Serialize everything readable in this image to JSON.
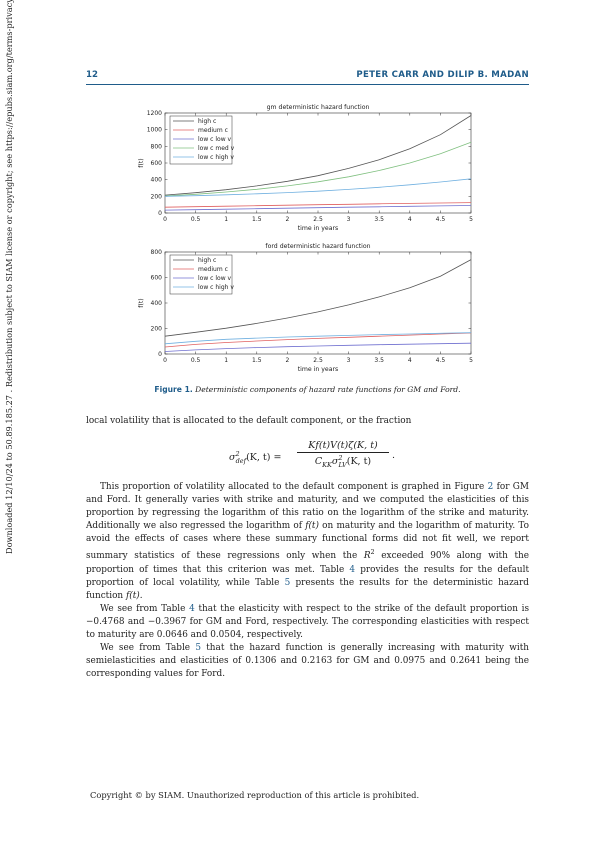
{
  "header": {
    "page_number": "12",
    "authors": "PETER CARR AND DILIP B. MADAN"
  },
  "sidebar": "Downloaded 12/10/24 to 50.89.185.27 . Redistribution subject to SIAM license or copyright; see https://epubs.siam.org/terms-privacy",
  "chart_data": [
    {
      "type": "line",
      "title": "gm deterministic hazard function",
      "xlabel": "time in years",
      "ylabel": "f(t)",
      "xlim": [
        0,
        5
      ],
      "ylim": [
        0,
        1200
      ],
      "xticks": [
        "0",
        "0.5",
        "1",
        "1.5",
        "2",
        "2.5",
        "3",
        "3.5",
        "4",
        "4.5",
        "5"
      ],
      "yticks": [
        "0",
        "200",
        "400",
        "600",
        "800",
        "1000",
        "1200"
      ],
      "legend_position": "top-left",
      "x": [
        0,
        0.5,
        1,
        1.5,
        2,
        2.5,
        3,
        3.5,
        4,
        4.5,
        5
      ],
      "series": [
        {
          "name": "high c",
          "color": "#555555",
          "values": [
            215,
            244,
            280,
            325,
            380,
            448,
            535,
            640,
            770,
            940,
            1170
          ]
        },
        {
          "name": "medium c",
          "color": "#e06060",
          "values": [
            70,
            76,
            82,
            88,
            94,
            100,
            105,
            110,
            115,
            120,
            125
          ]
        },
        {
          "name": "low c low v",
          "color": "#7070d0",
          "values": [
            35,
            40,
            46,
            52,
            58,
            64,
            70,
            75,
            80,
            85,
            90
          ]
        },
        {
          "name": "low c med v",
          "color": "#80c080",
          "values": [
            205,
            225,
            252,
            285,
            325,
            375,
            435,
            510,
            600,
            710,
            850
          ]
        },
        {
          "name": "low c high v",
          "color": "#70b0e0",
          "values": [
            200,
            208,
            218,
            230,
            245,
            262,
            283,
            308,
            338,
            372,
            410
          ]
        }
      ]
    },
    {
      "type": "line",
      "title": "ford deterministic hazard function",
      "xlabel": "time in years",
      "ylabel": "f(t)",
      "xlim": [
        0,
        5
      ],
      "ylim": [
        0,
        800
      ],
      "xticks": [
        "0",
        "0.5",
        "1",
        "1.5",
        "2",
        "2.5",
        "3",
        "3.5",
        "4",
        "4.5",
        "5"
      ],
      "yticks": [
        "0",
        "200",
        "400",
        "600",
        "800"
      ],
      "legend_position": "top-left",
      "x": [
        0,
        0.5,
        1,
        1.5,
        2,
        2.5,
        3,
        3.5,
        4,
        4.5,
        5
      ],
      "series": [
        {
          "name": "high c",
          "color": "#555555",
          "values": [
            140,
            170,
            202,
            240,
            282,
            330,
            385,
            448,
            520,
            610,
            740
          ]
        },
        {
          "name": "medium c",
          "color": "#e06060",
          "values": [
            55,
            75,
            90,
            102,
            113,
            122,
            131,
            140,
            148,
            157,
            165
          ]
        },
        {
          "name": "low c low v",
          "color": "#7070d0",
          "values": [
            20,
            32,
            42,
            50,
            57,
            63,
            68,
            73,
            77,
            81,
            85
          ]
        },
        {
          "name": "low c high v",
          "color": "#70b0e0",
          "values": [
            80,
            100,
            115,
            125,
            133,
            140,
            146,
            152,
            157,
            162,
            167
          ]
        }
      ]
    }
  ],
  "caption": {
    "label": "Figure 1.",
    "text": "Deterministic components of hazard rate functions for GM and Ford."
  },
  "p1": "local volatility that is allocated to the default component, or the fraction",
  "eq": {
    "sigma": "σ",
    "sup2": "2",
    "sub_def": "def",
    "kt": "(K, t) =",
    "num": "Kf(t)V(t)ζ(K, t)",
    "den_c": "C",
    "den_kk": "KK",
    "den_sigma": "σ",
    "den_lv": "LV",
    "den_kt": "(K, t)",
    "dot": "."
  },
  "p2": {
    "a": "This proportion of volatility allocated to the default component is graphed in Figure ",
    "fig2": "2",
    "b": " for GM and Ford. It generally varies with strike and maturity, and we computed the elasticities of this proportion by regressing the logarithm of this ratio on the logarithm of the strike and maturity. Additionally we also regressed the logarithm of ",
    "ft": "f(t)",
    "c": " on maturity and the logarithm of maturity. To avoid the effects of cases where these summary functional forms did not fit well, we report summary statistics of these regressions only when the ",
    "r2": "R",
    "r2sup": "2",
    "d": " exceeded 90% along with the proportion of times that this criterion was met. Table ",
    "t4": "4",
    "e": " provides the results for the default proportion of local volatility, while Table ",
    "t5": "5",
    "f": " presents the results for the deterministic hazard function ",
    "ft2": "f(t)",
    "g": "."
  },
  "p3": {
    "a": "We see from Table ",
    "t4": "4",
    "b": " that the elasticity with respect to the strike of the default proportion is −0.4768 and −0.3967 for GM and Ford, respectively. The corresponding elasticities with respect to maturity are 0.0646 and 0.0504, respectively."
  },
  "p4": {
    "a": "We see from Table ",
    "t5": "5",
    "b": " that the hazard function is generally increasing with maturity with semielasticities and elasticities of 0.1306 and 0.2163 for GM and 0.0975 and 0.2641 being the corresponding values for Ford."
  },
  "footer": "Copyright © by SIAM. Unauthorized reproduction of this article is prohibited."
}
